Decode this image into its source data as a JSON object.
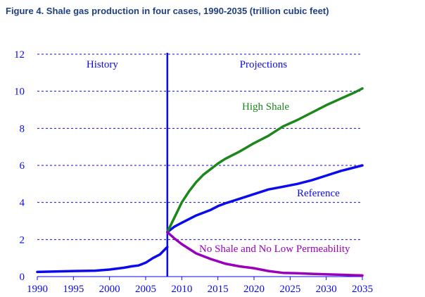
{
  "chart_data": {
    "type": "line",
    "title": "Figure 4. Shale gas production in four cases, 1990-2035 (trillion cubic feet)",
    "xlabel": "",
    "ylabel": "",
    "xlim": [
      1990,
      2035
    ],
    "ylim": [
      0,
      12
    ],
    "grid": true,
    "x_ticks": [
      1990,
      1995,
      2000,
      2005,
      2010,
      2015,
      2020,
      2025,
      2030,
      2035
    ],
    "y_ticks": [
      0,
      2,
      4,
      6,
      8,
      10,
      12
    ],
    "history_divider_year": 2008,
    "annotations": [
      {
        "text": "History",
        "region": "history"
      },
      {
        "text": "Projections",
        "region": "projections"
      }
    ],
    "series": [
      {
        "name": "History",
        "color": "#0a0aee",
        "x": [
          1990,
          1992,
          1995,
          1998,
          2000,
          2002,
          2003,
          2004,
          2005,
          2006,
          2007,
          2008
        ],
        "y": [
          0.25,
          0.27,
          0.3,
          0.32,
          0.38,
          0.48,
          0.55,
          0.6,
          0.75,
          1.0,
          1.2,
          1.6
        ]
      },
      {
        "name": "Reference",
        "color": "#0a0aee",
        "x": [
          2008,
          2009,
          2010,
          2012,
          2014,
          2015,
          2016,
          2018,
          2020,
          2022,
          2024,
          2026,
          2028,
          2030,
          2032,
          2035
        ],
        "y": [
          2.4,
          2.7,
          2.9,
          3.3,
          3.6,
          3.8,
          3.95,
          4.2,
          4.45,
          4.7,
          4.85,
          5.0,
          5.2,
          5.45,
          5.7,
          6.0
        ]
      },
      {
        "name": "High Shale",
        "color": "#1d861d",
        "x": [
          2008,
          2009,
          2010,
          2011,
          2012,
          2013,
          2014,
          2015,
          2016,
          2018,
          2020,
          2022,
          2024,
          2026,
          2028,
          2030,
          2032,
          2034,
          2035
        ],
        "y": [
          2.4,
          3.2,
          4.0,
          4.6,
          5.1,
          5.5,
          5.8,
          6.1,
          6.35,
          6.75,
          7.2,
          7.6,
          8.1,
          8.45,
          8.85,
          9.25,
          9.6,
          9.95,
          10.15
        ]
      },
      {
        "name": "No Shale and No Low Permeability",
        "color": "#9900bb",
        "x": [
          2008,
          2009,
          2010,
          2012,
          2014,
          2016,
          2018,
          2020,
          2022,
          2024,
          2026,
          2028,
          2030,
          2032,
          2035
        ],
        "y": [
          2.4,
          2.05,
          1.75,
          1.25,
          0.95,
          0.7,
          0.55,
          0.45,
          0.3,
          0.2,
          0.18,
          0.15,
          0.12,
          0.1,
          0.06
        ]
      }
    ],
    "series_labels": [
      {
        "text": "High Shale",
        "color": "#1d861d"
      },
      {
        "text": "Reference",
        "color": "#0a0aee"
      },
      {
        "text": "No Shale and No Low Permeability",
        "color": "#9900bb"
      }
    ],
    "colors": {
      "axis": "#0a0aee",
      "grid": "#0a0aee",
      "tick_text": "#0a0aee",
      "title": "#1f3f7f"
    }
  }
}
